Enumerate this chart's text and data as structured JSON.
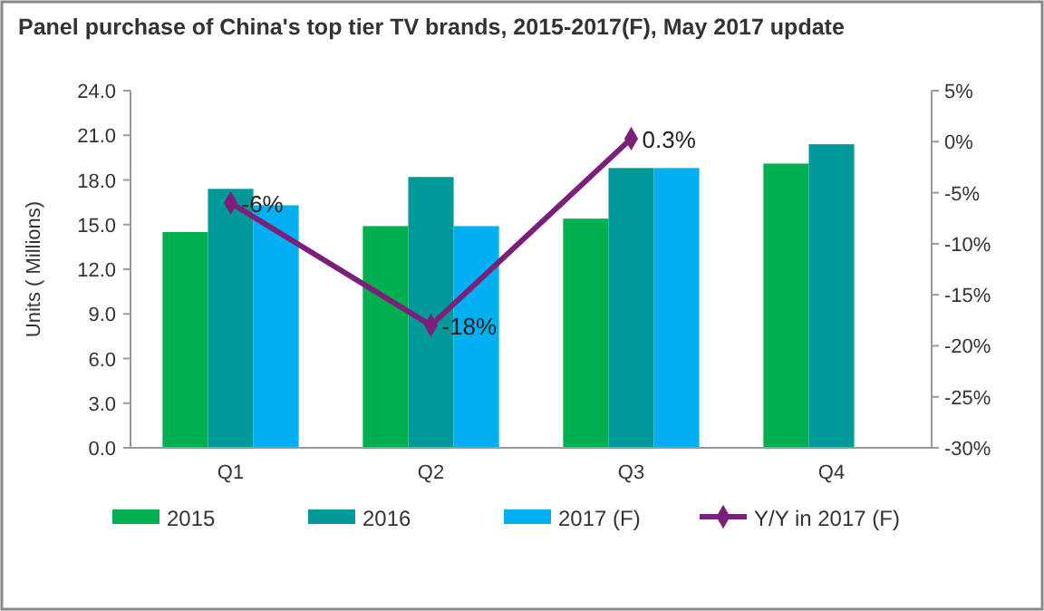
{
  "chart_data": {
    "type": "bar",
    "title": "Panel purchase of China's top tier TV brands, 2015-2017(F), May 2017 update",
    "ylabel": "Units ( Millions)",
    "categories": [
      "Q1",
      "Q2",
      "Q3",
      "Q4"
    ],
    "series": [
      {
        "name": "2015",
        "color": "#00b050",
        "values": [
          14.5,
          14.9,
          15.4,
          19.1
        ]
      },
      {
        "name": "2016",
        "color": "#009999",
        "values": [
          17.4,
          18.2,
          18.8,
          20.4
        ]
      },
      {
        "name": "2017 (F)",
        "color": "#00b0f0",
        "values": [
          16.3,
          14.9,
          18.8,
          null
        ]
      },
      {
        "name": "Y/Y in 2017 (F)",
        "type": "line",
        "axis": "y2",
        "color": "#7b1f7b",
        "marker": "diamond",
        "values": [
          -6,
          -18,
          0.3,
          null
        ],
        "value_labels": [
          "-6%",
          "-18%",
          "0.3%",
          null
        ]
      }
    ],
    "ylim": [
      0,
      24
    ],
    "yticks": [
      {
        "value": 0,
        "label": "0.0"
      },
      {
        "value": 3,
        "label": "3.0"
      },
      {
        "value": 6,
        "label": "6.0"
      },
      {
        "value": 9,
        "label": "9.0"
      },
      {
        "value": 12,
        "label": "12.0"
      },
      {
        "value": 15,
        "label": "15.0"
      },
      {
        "value": 18,
        "label": "18.0"
      },
      {
        "value": 21,
        "label": "21.0"
      },
      {
        "value": 24,
        "label": "24.0"
      }
    ],
    "y2lim": [
      -30,
      5
    ],
    "y2ticks": [
      {
        "value": 5,
        "label": "5%"
      },
      {
        "value": 0,
        "label": "0%"
      },
      {
        "value": -5,
        "label": "-5%"
      },
      {
        "value": -10,
        "label": "-10%"
      },
      {
        "value": -15,
        "label": "-15%"
      },
      {
        "value": -20,
        "label": "-20%"
      },
      {
        "value": -25,
        "label": "-25%"
      },
      {
        "value": -30,
        "label": "-30%"
      }
    ],
    "grid": false,
    "legend": "bottom"
  }
}
